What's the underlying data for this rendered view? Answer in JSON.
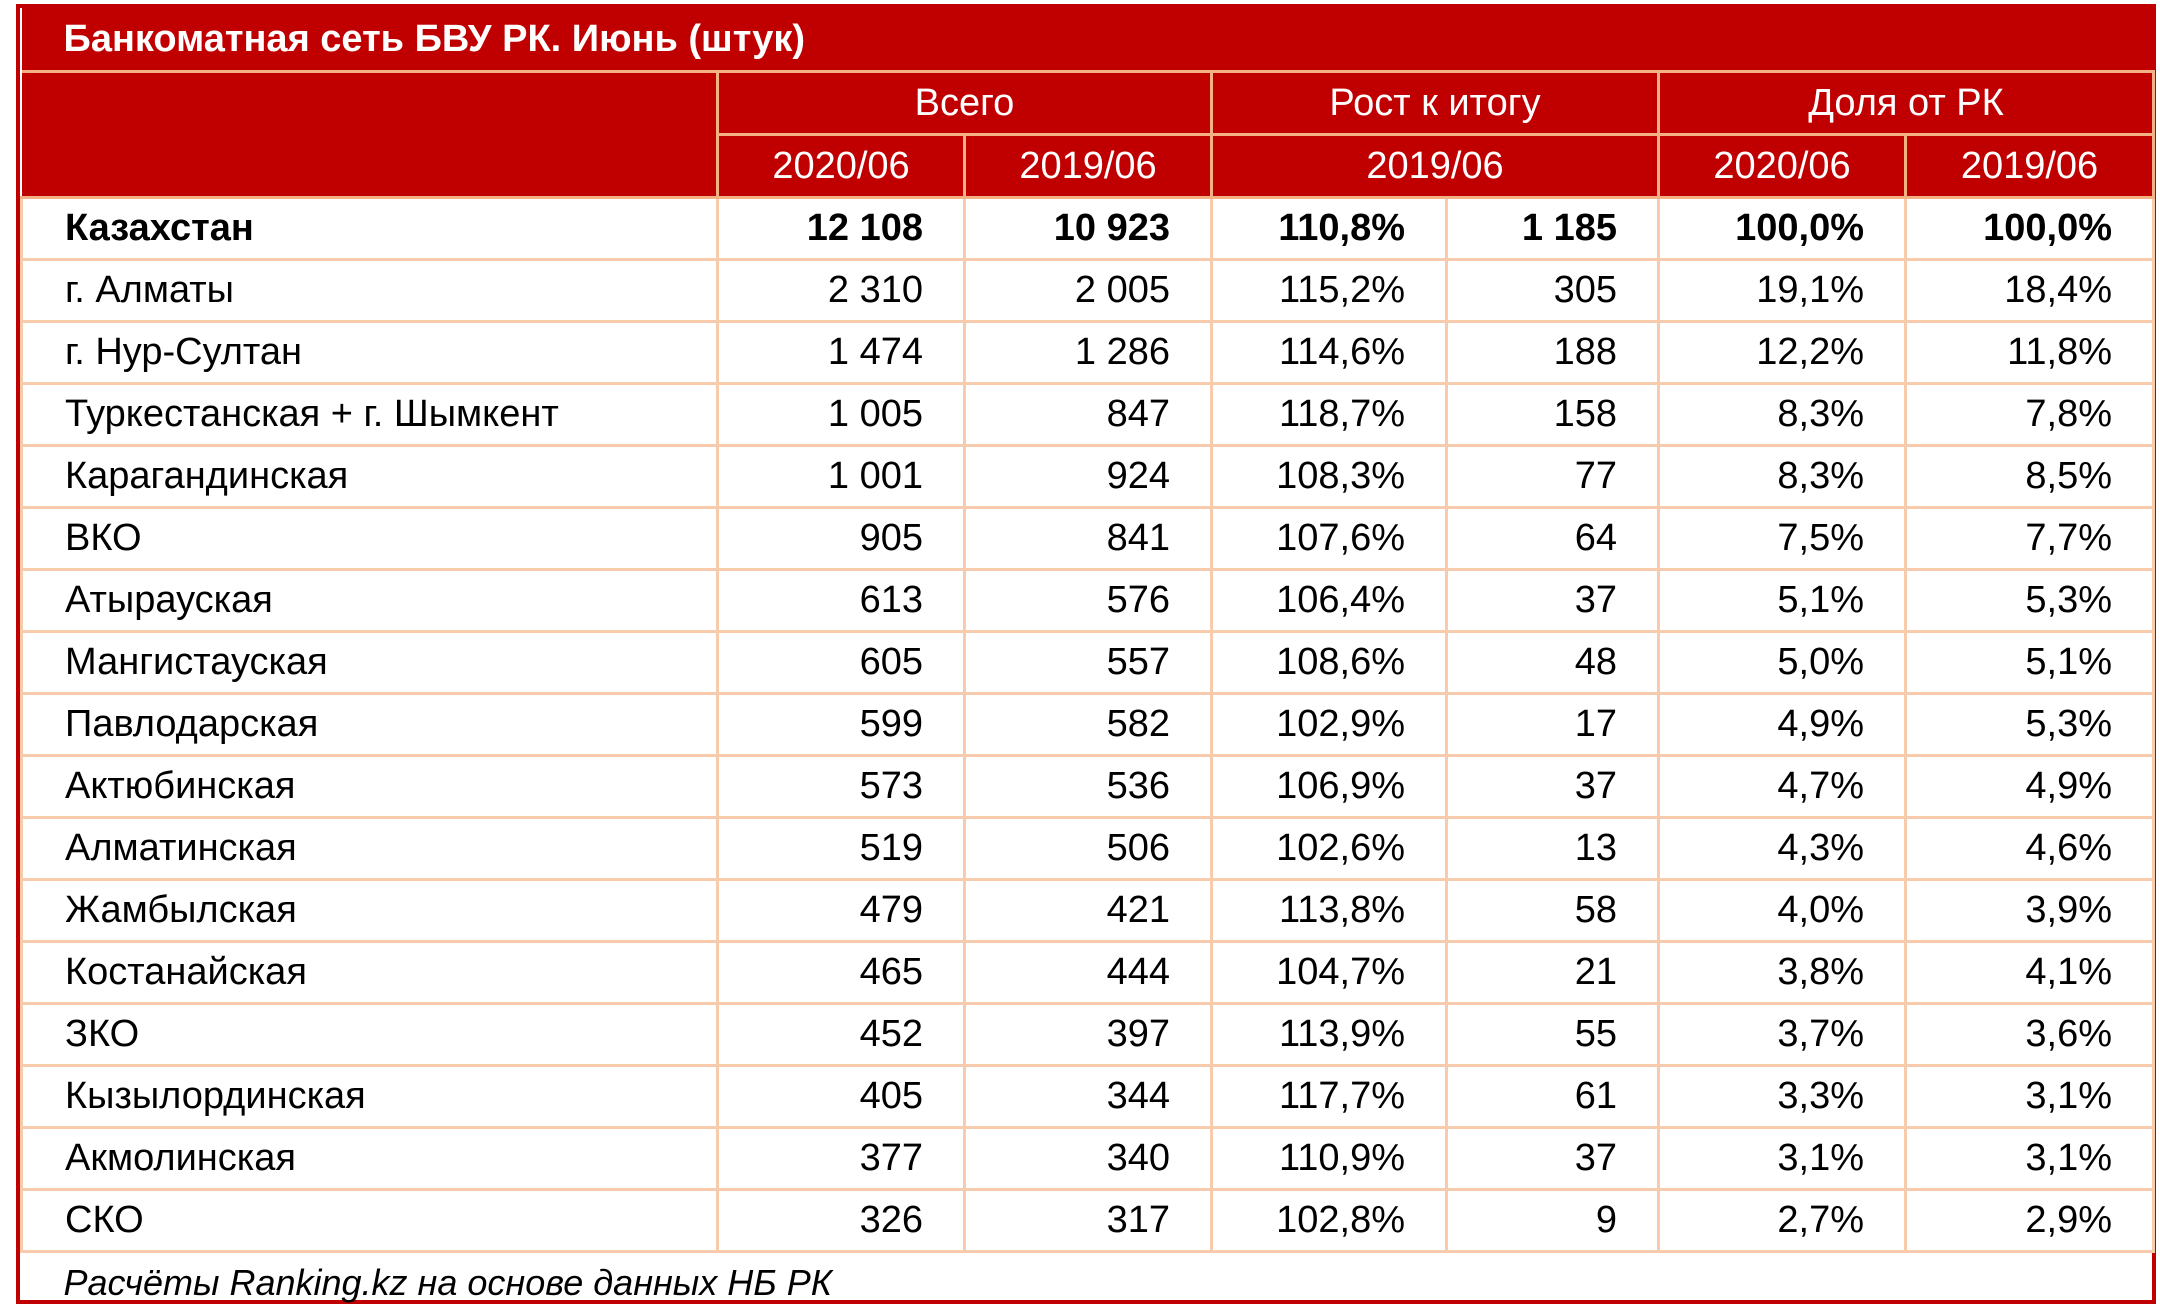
{
  "title": "Банкоматная сеть БВУ РК. Июнь (штук)",
  "header": {
    "group_total": "Всего",
    "group_growth": "Рост к итогу",
    "group_share": "Доля от РК",
    "total_2020": "2020/06",
    "total_2019": "2019/06",
    "growth_period": "2019/06",
    "share_2020": "2020/06",
    "share_2019": "2019/06"
  },
  "colors": {
    "accent": "#c00000",
    "border_light": "#f8cbad"
  },
  "rows": [
    {
      "region": "Казахстан",
      "total_2020": "12 108",
      "total_2019": "10 923",
      "growth_pct": "110,8%",
      "growth_abs": "1 185",
      "share_2020": "100,0%",
      "share_2019": "100,0%"
    },
    {
      "region": "г. Алматы",
      "total_2020": "2 310",
      "total_2019": "2 005",
      "growth_pct": "115,2%",
      "growth_abs": "305",
      "share_2020": "19,1%",
      "share_2019": "18,4%"
    },
    {
      "region": "г. Нур-Султан",
      "total_2020": "1 474",
      "total_2019": "1 286",
      "growth_pct": "114,6%",
      "growth_abs": "188",
      "share_2020": "12,2%",
      "share_2019": "11,8%"
    },
    {
      "region": "Туркестанская + г. Шымкент",
      "total_2020": "1 005",
      "total_2019": "847",
      "growth_pct": "118,7%",
      "growth_abs": "158",
      "share_2020": "8,3%",
      "share_2019": "7,8%"
    },
    {
      "region": "Карагандинская",
      "total_2020": "1 001",
      "total_2019": "924",
      "growth_pct": "108,3%",
      "growth_abs": "77",
      "share_2020": "8,3%",
      "share_2019": "8,5%"
    },
    {
      "region": "ВКО",
      "total_2020": "905",
      "total_2019": "841",
      "growth_pct": "107,6%",
      "growth_abs": "64",
      "share_2020": "7,5%",
      "share_2019": "7,7%"
    },
    {
      "region": "Атырауская",
      "total_2020": "613",
      "total_2019": "576",
      "growth_pct": "106,4%",
      "growth_abs": "37",
      "share_2020": "5,1%",
      "share_2019": "5,3%"
    },
    {
      "region": "Мангистауская",
      "total_2020": "605",
      "total_2019": "557",
      "growth_pct": "108,6%",
      "growth_abs": "48",
      "share_2020": "5,0%",
      "share_2019": "5,1%"
    },
    {
      "region": "Павлодарская",
      "total_2020": "599",
      "total_2019": "582",
      "growth_pct": "102,9%",
      "growth_abs": "17",
      "share_2020": "4,9%",
      "share_2019": "5,3%"
    },
    {
      "region": "Актюбинская",
      "total_2020": "573",
      "total_2019": "536",
      "growth_pct": "106,9%",
      "growth_abs": "37",
      "share_2020": "4,7%",
      "share_2019": "4,9%"
    },
    {
      "region": "Алматинская",
      "total_2020": "519",
      "total_2019": "506",
      "growth_pct": "102,6%",
      "growth_abs": "13",
      "share_2020": "4,3%",
      "share_2019": "4,6%"
    },
    {
      "region": "Жамбылская",
      "total_2020": "479",
      "total_2019": "421",
      "growth_pct": "113,8%",
      "growth_abs": "58",
      "share_2020": "4,0%",
      "share_2019": "3,9%"
    },
    {
      "region": "Костанайская",
      "total_2020": "465",
      "total_2019": "444",
      "growth_pct": "104,7%",
      "growth_abs": "21",
      "share_2020": "3,8%",
      "share_2019": "4,1%"
    },
    {
      "region": "ЗКО",
      "total_2020": "452",
      "total_2019": "397",
      "growth_pct": "113,9%",
      "growth_abs": "55",
      "share_2020": "3,7%",
      "share_2019": "3,6%"
    },
    {
      "region": "Кызылординская",
      "total_2020": "405",
      "total_2019": "344",
      "growth_pct": "117,7%",
      "growth_abs": "61",
      "share_2020": "3,3%",
      "share_2019": "3,1%"
    },
    {
      "region": "Акмолинская",
      "total_2020": "377",
      "total_2019": "340",
      "growth_pct": "110,9%",
      "growth_abs": "37",
      "share_2020": "3,1%",
      "share_2019": "3,1%"
    },
    {
      "region": "СКО",
      "total_2020": "326",
      "total_2019": "317",
      "growth_pct": "102,8%",
      "growth_abs": "9",
      "share_2020": "2,7%",
      "share_2019": "2,9%"
    }
  ],
  "footer": "Расчёты Ranking.kz на основе данных НБ РК"
}
